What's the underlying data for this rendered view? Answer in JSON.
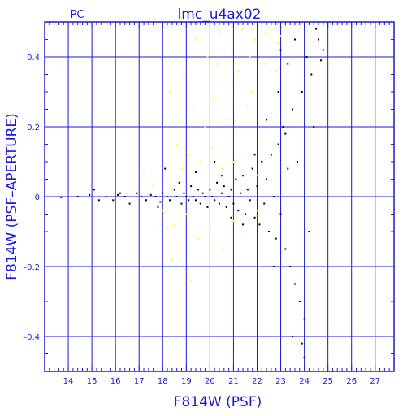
{
  "chart_data": {
    "type": "scatter",
    "title": "lmc_u4ax02",
    "subtitle": "PC",
    "xlabel": "F814W (PSF)",
    "ylabel": "F814W (PSF–APERTURE)",
    "xlim": [
      13,
      27.8
    ],
    "ylim": [
      -0.5,
      0.5
    ],
    "grid": true,
    "x_ticks": [
      "14",
      "15",
      "16",
      "17",
      "18",
      "19",
      "20",
      "21",
      "22",
      "23",
      "24",
      "25",
      "26",
      "27"
    ],
    "y_ticks": [
      "0.4",
      "0.2",
      "0",
      "–0.2",
      "–0.4"
    ],
    "y_tick_values": [
      0.4,
      0.2,
      0,
      -0.2,
      -0.4
    ],
    "colors": {
      "axes": "#1a1ad6",
      "points": "#000000",
      "rejected_points": "#ffff00"
    },
    "series": [
      {
        "color": "#000000",
        "points": [
          [
            13.7,
            -0.002
          ],
          [
            14.4,
            0.0
          ],
          [
            14.9,
            0.005
          ],
          [
            15.1,
            0.02
          ],
          [
            15.3,
            -0.01
          ],
          [
            15.6,
            0.0
          ],
          [
            15.9,
            -0.01
          ],
          [
            16.1,
            0.005
          ],
          [
            16.4,
            0.0
          ],
          [
            16.6,
            -0.02
          ],
          [
            16.9,
            0.01
          ],
          [
            17.1,
            0.0
          ],
          [
            17.3,
            -0.01
          ],
          [
            17.5,
            0.005
          ],
          [
            17.7,
            0.0
          ],
          [
            17.9,
            -0.015
          ],
          [
            18.0,
            0.01
          ],
          [
            18.2,
            0.0
          ],
          [
            18.3,
            -0.01
          ],
          [
            18.5,
            0.02
          ],
          [
            18.6,
            0.0
          ],
          [
            18.8,
            -0.02
          ],
          [
            18.9,
            0.01
          ],
          [
            19.0,
            0.0
          ],
          [
            19.1,
            -0.01
          ],
          [
            19.2,
            0.03
          ],
          [
            19.3,
            0.0
          ],
          [
            19.4,
            -0.01
          ],
          [
            19.5,
            0.02
          ],
          [
            19.6,
            -0.02
          ],
          [
            19.7,
            0.01
          ],
          [
            19.8,
            0.0
          ],
          [
            19.9,
            -0.03
          ],
          [
            20.0,
            0.02
          ],
          [
            20.1,
            0.0
          ],
          [
            20.2,
            -0.01
          ],
          [
            20.3,
            0.04
          ],
          [
            20.4,
            -0.02
          ],
          [
            20.5,
            0.01
          ],
          [
            20.6,
            0.03
          ],
          [
            20.7,
            -0.03
          ],
          [
            20.8,
            0.0
          ],
          [
            20.9,
            0.02
          ],
          [
            21.0,
            -0.02
          ],
          [
            21.1,
            0.05
          ],
          [
            21.2,
            -0.04
          ],
          [
            21.3,
            0.01
          ],
          [
            21.4,
            0.06
          ],
          [
            21.5,
            -0.05
          ],
          [
            21.6,
            0.02
          ],
          [
            21.7,
            -0.01
          ],
          [
            21.8,
            0.08
          ],
          [
            21.9,
            -0.06
          ],
          [
            22.0,
            0.03
          ],
          [
            22.1,
            -0.08
          ],
          [
            22.2,
            0.1
          ],
          [
            22.3,
            -0.02
          ],
          [
            22.4,
            0.05
          ],
          [
            22.5,
            -0.1
          ],
          [
            22.6,
            0.12
          ],
          [
            22.7,
            0.0
          ],
          [
            22.8,
            -0.12
          ],
          [
            22.9,
            0.15
          ],
          [
            23.0,
            -0.05
          ],
          [
            23.1,
            0.2
          ],
          [
            23.2,
            -0.15
          ],
          [
            23.3,
            0.08
          ],
          [
            23.4,
            -0.2
          ],
          [
            23.5,
            0.25
          ],
          [
            23.6,
            -0.25
          ],
          [
            23.7,
            0.1
          ],
          [
            23.8,
            -0.3
          ],
          [
            23.9,
            0.3
          ],
          [
            24.0,
            -0.35
          ],
          [
            24.1,
            0.4
          ],
          [
            24.2,
            -0.1
          ],
          [
            24.3,
            0.35
          ],
          [
            24.4,
            0.2
          ],
          [
            24.5,
            0.48
          ],
          [
            24.6,
            0.45
          ],
          [
            24.7,
            0.39
          ],
          [
            24.8,
            0.42
          ],
          [
            23.0,
            0.42
          ],
          [
            23.3,
            0.38
          ],
          [
            23.6,
            0.45
          ],
          [
            23.9,
            -0.42
          ],
          [
            24.0,
            -0.46
          ],
          [
            23.5,
            -0.4
          ],
          [
            22.9,
            0.3
          ],
          [
            22.7,
            -0.2
          ],
          [
            23.2,
            0.18
          ],
          [
            22.4,
            0.22
          ],
          [
            21.9,
            0.12
          ],
          [
            20.9,
            -0.06
          ],
          [
            21.4,
            -0.08
          ],
          [
            20.5,
            0.06
          ],
          [
            18.1,
            0.08
          ],
          [
            19.4,
            0.07
          ],
          [
            20.2,
            0.1
          ],
          [
            17.8,
            -0.03
          ],
          [
            18.7,
            0.04
          ],
          [
            16.2,
            0.01
          ]
        ]
      },
      {
        "color": "#ffff00",
        "points": [
          [
            17.8,
            0.42
          ],
          [
            18.3,
            0.3
          ],
          [
            18.9,
            0.35
          ],
          [
            19.4,
            0.45
          ],
          [
            19.9,
            0.4
          ],
          [
            20.4,
            0.47
          ],
          [
            20.9,
            0.42
          ],
          [
            21.4,
            0.48
          ],
          [
            21.9,
            0.45
          ],
          [
            22.4,
            0.47
          ],
          [
            22.9,
            0.44
          ],
          [
            23.2,
            0.49
          ],
          [
            20.6,
            0.32
          ],
          [
            21.2,
            0.36
          ],
          [
            21.8,
            0.3
          ],
          [
            22.3,
            0.38
          ],
          [
            19.3,
            0.25
          ],
          [
            19.8,
            0.2
          ],
          [
            20.2,
            0.28
          ],
          [
            20.7,
            0.22
          ],
          [
            21.1,
            0.18
          ],
          [
            21.6,
            0.26
          ],
          [
            22.1,
            0.16
          ],
          [
            22.6,
            0.24
          ],
          [
            18.6,
            0.15
          ],
          [
            19.1,
            0.12
          ],
          [
            19.6,
            0.1
          ],
          [
            20.1,
            0.14
          ],
          [
            20.5,
            0.08
          ],
          [
            21.0,
            0.1
          ],
          [
            21.5,
            0.12
          ],
          [
            22.0,
            0.06
          ],
          [
            18.2,
            0.05
          ],
          [
            18.8,
            0.08
          ],
          [
            17.6,
            0.03
          ],
          [
            17.2,
            0.06
          ],
          [
            18.0,
            -0.04
          ],
          [
            18.5,
            -0.08
          ],
          [
            19.0,
            -0.05
          ],
          [
            19.5,
            -0.12
          ],
          [
            20.0,
            -0.09
          ],
          [
            20.5,
            -0.15
          ],
          [
            21.0,
            -0.07
          ],
          [
            21.5,
            -0.11
          ],
          [
            22.0,
            -0.04
          ],
          [
            17.9,
            -0.1
          ],
          [
            19.2,
            -0.24
          ],
          [
            18.4,
            -0.18
          ],
          [
            23.0,
            0.46
          ],
          [
            22.8,
            0.36
          ],
          [
            21.7,
            0.4
          ],
          [
            20.3,
            0.38
          ]
        ]
      }
    ]
  }
}
